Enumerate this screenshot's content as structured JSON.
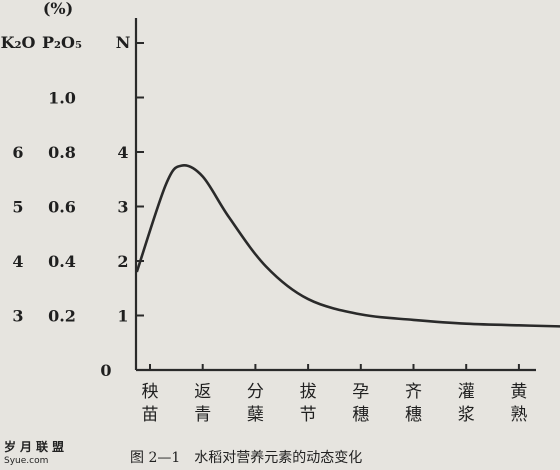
{
  "watermark": {
    "name": "岁月联盟",
    "site": "Syue.com"
  },
  "caption": "图 2—1　水稻对营养元素的动态变化",
  "chart_data": {
    "type": "line",
    "unit": "(%)",
    "axis_headers": [
      "K₂O",
      "P₂O₅",
      "N"
    ],
    "y_axes": [
      {
        "name": "K₂O",
        "ticks": [
          {
            "v": 3,
            "label": "3"
          },
          {
            "v": 4,
            "label": "4"
          },
          {
            "v": 5,
            "label": "5"
          },
          {
            "v": 6,
            "label": "6"
          }
        ]
      },
      {
        "name": "P₂O₅",
        "ticks": [
          {
            "v": 0.2,
            "label": "0.2"
          },
          {
            "v": 0.4,
            "label": "0.4"
          },
          {
            "v": 0.6,
            "label": "0.6"
          },
          {
            "v": 0.8,
            "label": "0.8"
          },
          {
            "v": 1.0,
            "label": "1.0"
          }
        ]
      },
      {
        "name": "N",
        "ticks": [
          {
            "v": 1,
            "label": "1"
          },
          {
            "v": 2,
            "label": "2"
          },
          {
            "v": 3,
            "label": "3"
          },
          {
            "v": 4,
            "label": "4"
          }
        ]
      }
    ],
    "n_range": [
      0,
      6.2
    ],
    "zero_label": "0",
    "categories": [
      [
        "秧",
        "苗"
      ],
      [
        "返",
        "青"
      ],
      [
        "分",
        "蘖"
      ],
      [
        "拔",
        "节"
      ],
      [
        "孕",
        "穗"
      ],
      [
        "齐",
        "穗"
      ],
      [
        "灌",
        "浆"
      ],
      [
        "黄",
        "熟"
      ]
    ],
    "series": [
      {
        "x": [
          -0.25,
          0.3,
          0.6,
          1.0,
          1.5,
          2.2,
          3.0,
          4.0,
          5.0,
          6.0,
          7.0,
          7.8
        ],
        "y": [
          1.8,
          3.4,
          3.75,
          3.55,
          2.8,
          1.9,
          1.3,
          1.02,
          0.92,
          0.85,
          0.82,
          0.8
        ]
      }
    ]
  }
}
